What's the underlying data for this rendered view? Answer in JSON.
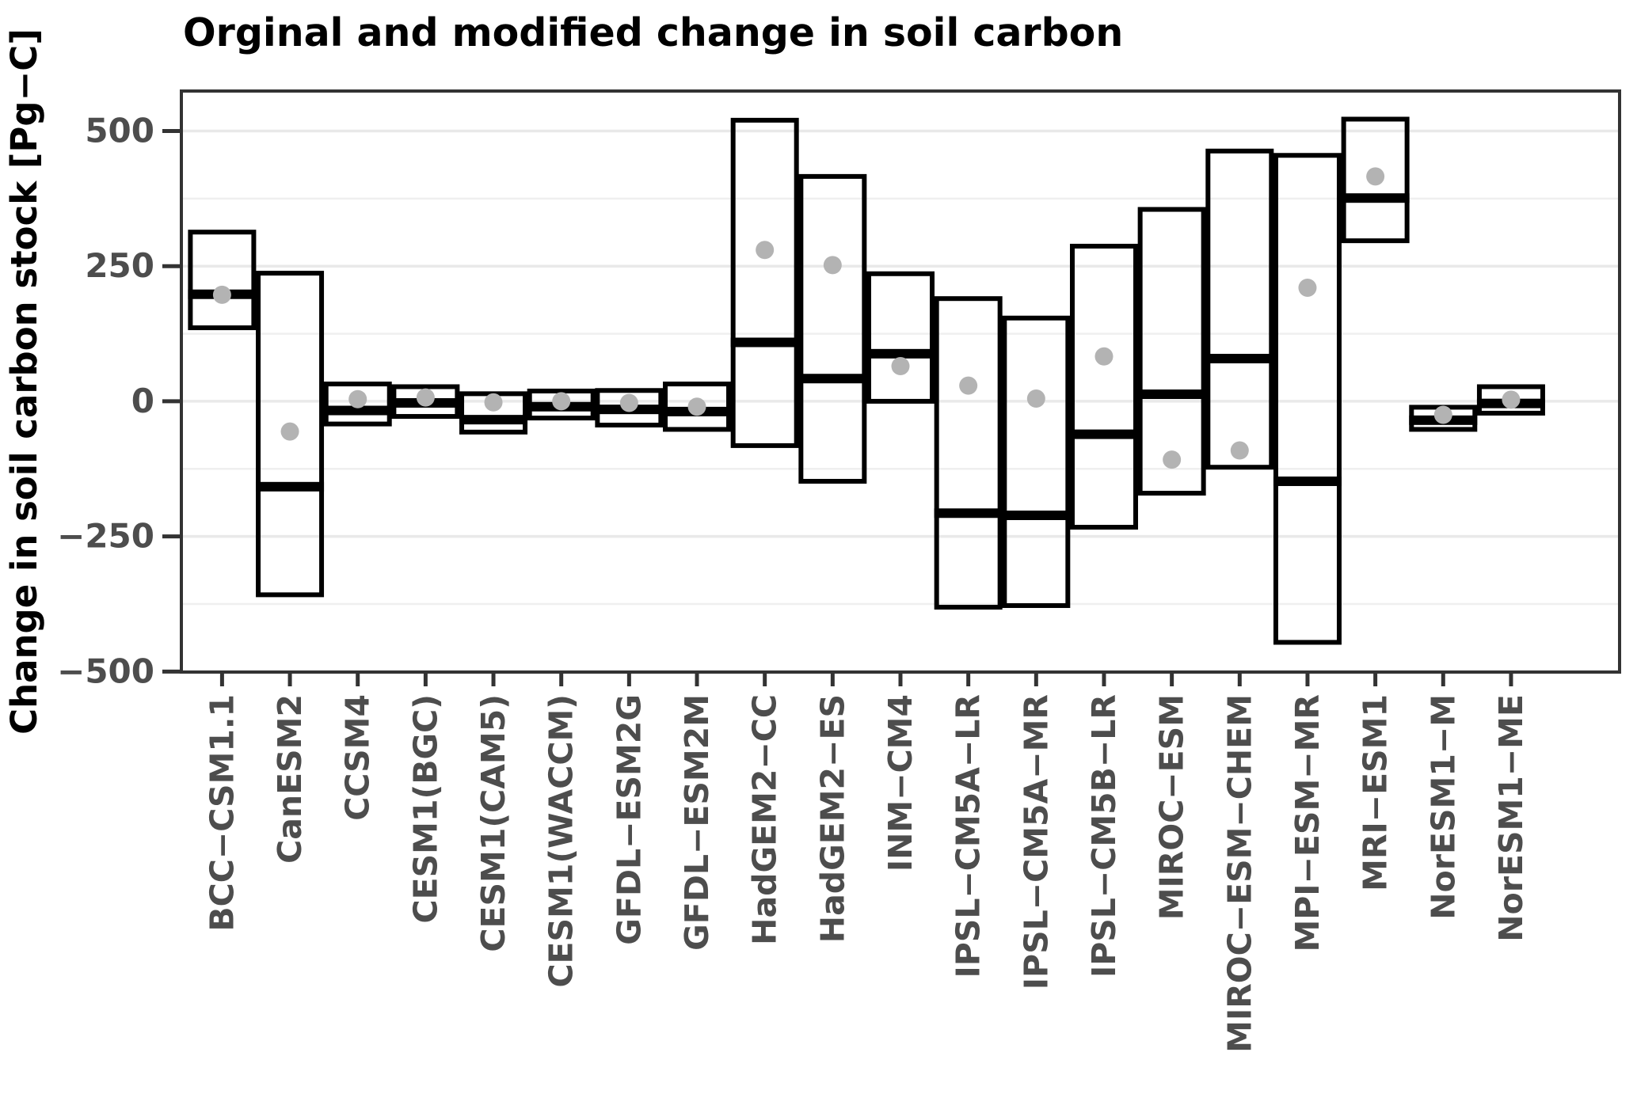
{
  "title": "Orginal and modified change in soil carbon",
  "chart_data": {
    "type": "crossbar",
    "title": "Orginal and modified change in soil carbon",
    "xlabel": "",
    "ylabel": "Change in soil carbon stock [Pg−C]",
    "ylim": [
      -501,
      574
    ],
    "y_ticks": [
      500,
      250,
      0,
      -250,
      -500
    ],
    "y_minor_gridlines": [
      375,
      125,
      -125,
      -375
    ],
    "grid": true,
    "legend": false,
    "categories": [
      "BCC−CSM1.1",
      "CanESM2",
      "CCSM4",
      "CESM1(BGC)",
      "CESM1(CAM5)",
      "CESM1(WACCM)",
      "GFDL−ESM2G",
      "GFDL−ESM2M",
      "HadGEM2−CC",
      "HadGEM2−ES",
      "INM−CM4",
      "IPSL−CM5A−LR",
      "IPSL−CM5A−MR",
      "IPSL−CM5B−LR",
      "MIROC−ESM",
      "MIROC−ESM−CHEM",
      "MPI−ESM−MR",
      "MRI−ESM1",
      "NorESM1−M",
      "NorESM1−ME"
    ],
    "series": [
      {
        "name": "modified_change_crossbar",
        "style": "open black box with thick horizontal midline",
        "boxes": [
          {
            "ymin": 136,
            "ymax": 313,
            "mid": 198
          },
          {
            "ymin": -358,
            "ymax": 237,
            "mid": -158
          },
          {
            "ymin": -42,
            "ymax": 32,
            "mid": -17
          },
          {
            "ymin": -28,
            "ymax": 27,
            "mid": -3
          },
          {
            "ymin": -57,
            "ymax": 14,
            "mid": -34
          },
          {
            "ymin": -31,
            "ymax": 19,
            "mid": -10
          },
          {
            "ymin": -44,
            "ymax": 20,
            "mid": -15
          },
          {
            "ymin": -52,
            "ymax": 32,
            "mid": -19
          },
          {
            "ymin": -82,
            "ymax": 520,
            "mid": 109
          },
          {
            "ymin": -148,
            "ymax": 416,
            "mid": 42
          },
          {
            "ymin": 0,
            "ymax": 236,
            "mid": 88
          },
          {
            "ymin": -381,
            "ymax": 190,
            "mid": -207
          },
          {
            "ymin": -378,
            "ymax": 154,
            "mid": -211
          },
          {
            "ymin": -233,
            "ymax": 287,
            "mid": -61
          },
          {
            "ymin": -170,
            "ymax": 355,
            "mid": 13
          },
          {
            "ymin": -122,
            "ymax": 463,
            "mid": 79
          },
          {
            "ymin": -446,
            "ymax": 455,
            "mid": -148
          },
          {
            "ymin": 297,
            "ymax": 522,
            "mid": 376
          },
          {
            "ymin": -52,
            "ymax": -11,
            "mid": -35
          },
          {
            "ymin": -22,
            "ymax": 27,
            "mid": -4
          }
        ]
      },
      {
        "name": "original_change_dot",
        "style": "gray filled circle",
        "values": [
          197,
          -56,
          4,
          7,
          -2,
          0,
          -3,
          -10,
          280,
          252,
          65,
          29,
          5,
          83,
          -108,
          -91,
          210,
          416,
          -25,
          3
        ]
      }
    ]
  },
  "colors": {
    "background": "#ffffff",
    "panel_background": "#ffffff",
    "panel_border": "#333333",
    "grid_major": "#e9e9e9",
    "grid_minor": "#efefef",
    "box_stroke": "#000000",
    "midline": "#000000",
    "dot_fill": "#b3b3b3",
    "title_text": "#000000",
    "axis_title_text": "#000000",
    "tick_label_text": "#4d4d4d",
    "tick_mark": "#333333"
  }
}
